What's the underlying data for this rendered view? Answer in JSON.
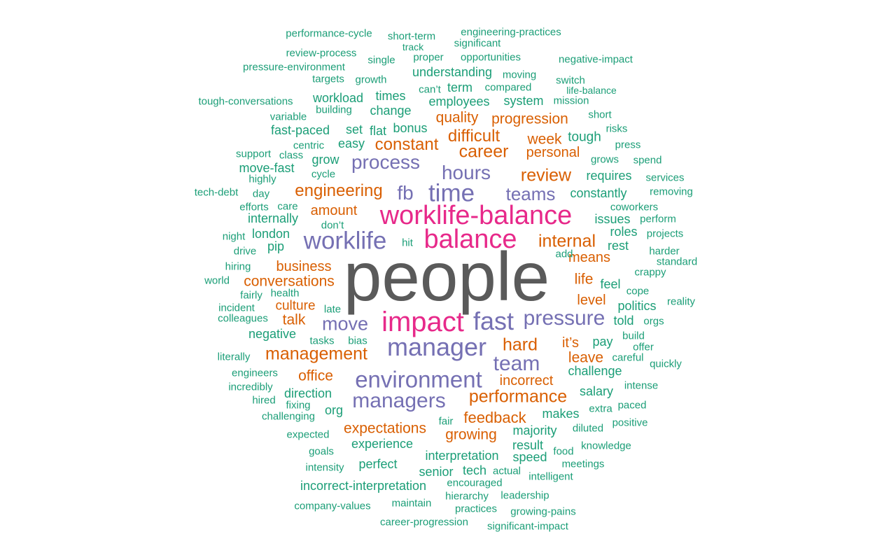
{
  "colors": {
    "darkgray": "#5a5a5a",
    "magenta": "#e7298a",
    "purple": "#7570b3",
    "orange": "#d95f02",
    "teal": "#1b9e77"
  },
  "words": [
    {
      "text": "people",
      "color": "darkgray"
    },
    {
      "text": "impact",
      "color": "magenta"
    },
    {
      "text": "balance",
      "color": "magenta"
    },
    {
      "text": "worklife-balance",
      "color": "magenta"
    },
    {
      "text": "manager",
      "color": "purple"
    },
    {
      "text": "fast",
      "color": "purple"
    },
    {
      "text": "environment",
      "color": "purple"
    },
    {
      "text": "worklife",
      "color": "purple"
    },
    {
      "text": "time",
      "color": "purple"
    },
    {
      "text": "pressure",
      "color": "purple"
    },
    {
      "text": "managers",
      "color": "purple"
    },
    {
      "text": "team",
      "color": "purple"
    },
    {
      "text": "move",
      "color": "purple"
    },
    {
      "text": "hours",
      "color": "purple"
    },
    {
      "text": "fb",
      "color": "purple"
    },
    {
      "text": "process",
      "color": "purple"
    },
    {
      "text": "teams",
      "color": "purple"
    },
    {
      "text": "management",
      "color": "orange"
    },
    {
      "text": "performance",
      "color": "orange"
    },
    {
      "text": "engineering",
      "color": "orange"
    },
    {
      "text": "internal",
      "color": "orange"
    },
    {
      "text": "career",
      "color": "orange"
    },
    {
      "text": "constant",
      "color": "orange"
    },
    {
      "text": "review",
      "color": "orange"
    },
    {
      "text": "hard",
      "color": "orange"
    },
    {
      "text": "difficult",
      "color": "orange"
    },
    {
      "text": "expectations",
      "color": "orange"
    },
    {
      "text": "feedback",
      "color": "orange"
    },
    {
      "text": "conversations",
      "color": "orange"
    },
    {
      "text": "progression",
      "color": "orange"
    },
    {
      "text": "business",
      "color": "orange"
    },
    {
      "text": "means",
      "color": "orange"
    },
    {
      "text": "growing",
      "color": "orange"
    },
    {
      "text": "incorrect",
      "color": "orange"
    },
    {
      "text": "personal",
      "color": "orange"
    },
    {
      "text": "office",
      "color": "orange"
    },
    {
      "text": "amount",
      "color": "orange"
    },
    {
      "text": "leave",
      "color": "orange"
    },
    {
      "text": "week",
      "color": "orange"
    },
    {
      "text": "quality",
      "color": "orange"
    },
    {
      "text": "culture",
      "color": "orange"
    },
    {
      "text": "talk",
      "color": "orange"
    },
    {
      "text": "life",
      "color": "orange"
    },
    {
      "text": "level",
      "color": "orange"
    },
    {
      "text": "it’s",
      "color": "orange"
    },
    {
      "text": "performance-cycle",
      "color": "teal"
    },
    {
      "text": "short-term",
      "color": "teal"
    },
    {
      "text": "engineering-practices",
      "color": "teal"
    },
    {
      "text": "significant",
      "color": "teal"
    },
    {
      "text": "track",
      "color": "teal"
    },
    {
      "text": "review-process",
      "color": "teal"
    },
    {
      "text": "single",
      "color": "teal"
    },
    {
      "text": "proper",
      "color": "teal"
    },
    {
      "text": "opportunities",
      "color": "teal"
    },
    {
      "text": "negative-impact",
      "color": "teal"
    },
    {
      "text": "pressure-environment",
      "color": "teal"
    },
    {
      "text": "understanding",
      "color": "teal"
    },
    {
      "text": "moving",
      "color": "teal"
    },
    {
      "text": "targets",
      "color": "teal"
    },
    {
      "text": "growth",
      "color": "teal"
    },
    {
      "text": "switch",
      "color": "teal"
    },
    {
      "text": "term",
      "color": "teal"
    },
    {
      "text": "compared",
      "color": "teal"
    },
    {
      "text": "can’t",
      "color": "teal"
    },
    {
      "text": "life-balance",
      "color": "teal"
    },
    {
      "text": "tough-conversations",
      "color": "teal"
    },
    {
      "text": "workload",
      "color": "teal"
    },
    {
      "text": "times",
      "color": "teal"
    },
    {
      "text": "employees",
      "color": "teal"
    },
    {
      "text": "system",
      "color": "teal"
    },
    {
      "text": "mission",
      "color": "teal"
    },
    {
      "text": "building",
      "color": "teal"
    },
    {
      "text": "change",
      "color": "teal"
    },
    {
      "text": "variable",
      "color": "teal"
    },
    {
      "text": "short",
      "color": "teal"
    },
    {
      "text": "fast-paced",
      "color": "teal"
    },
    {
      "text": "set",
      "color": "teal"
    },
    {
      "text": "flat",
      "color": "teal"
    },
    {
      "text": "bonus",
      "color": "teal"
    },
    {
      "text": "risks",
      "color": "teal"
    },
    {
      "text": "tough",
      "color": "teal"
    },
    {
      "text": "centric",
      "color": "teal"
    },
    {
      "text": "easy",
      "color": "teal"
    },
    {
      "text": "press",
      "color": "teal"
    },
    {
      "text": "support",
      "color": "teal"
    },
    {
      "text": "class",
      "color": "teal"
    },
    {
      "text": "grow",
      "color": "teal"
    },
    {
      "text": "grows",
      "color": "teal"
    },
    {
      "text": "spend",
      "color": "teal"
    },
    {
      "text": "move-fast",
      "color": "teal"
    },
    {
      "text": "cycle",
      "color": "teal"
    },
    {
      "text": "requires",
      "color": "teal"
    },
    {
      "text": "services",
      "color": "teal"
    },
    {
      "text": "highly",
      "color": "teal"
    },
    {
      "text": "tech-debt",
      "color": "teal"
    },
    {
      "text": "day",
      "color": "teal"
    },
    {
      "text": "constantly",
      "color": "teal"
    },
    {
      "text": "removing",
      "color": "teal"
    },
    {
      "text": "efforts",
      "color": "teal"
    },
    {
      "text": "care",
      "color": "teal"
    },
    {
      "text": "coworkers",
      "color": "teal"
    },
    {
      "text": "internally",
      "color": "teal"
    },
    {
      "text": "issues",
      "color": "teal"
    },
    {
      "text": "perform",
      "color": "teal"
    },
    {
      "text": "don’t",
      "color": "teal"
    },
    {
      "text": "roles",
      "color": "teal"
    },
    {
      "text": "projects",
      "color": "teal"
    },
    {
      "text": "night",
      "color": "teal"
    },
    {
      "text": "london",
      "color": "teal"
    },
    {
      "text": "rest",
      "color": "teal"
    },
    {
      "text": "hit",
      "color": "teal"
    },
    {
      "text": "pip",
      "color": "teal"
    },
    {
      "text": "drive",
      "color": "teal"
    },
    {
      "text": "add",
      "color": "teal"
    },
    {
      "text": "harder",
      "color": "teal"
    },
    {
      "text": "standard",
      "color": "teal"
    },
    {
      "text": "hiring",
      "color": "teal"
    },
    {
      "text": "crappy",
      "color": "teal"
    },
    {
      "text": "world",
      "color": "teal"
    },
    {
      "text": "feel",
      "color": "teal"
    },
    {
      "text": "cope",
      "color": "teal"
    },
    {
      "text": "fairly",
      "color": "teal"
    },
    {
      "text": "health",
      "color": "teal"
    },
    {
      "text": "reality",
      "color": "teal"
    },
    {
      "text": "incident",
      "color": "teal"
    },
    {
      "text": "late",
      "color": "teal"
    },
    {
      "text": "politics",
      "color": "teal"
    },
    {
      "text": "colleagues",
      "color": "teal"
    },
    {
      "text": "told",
      "color": "teal"
    },
    {
      "text": "orgs",
      "color": "teal"
    },
    {
      "text": "negative",
      "color": "teal"
    },
    {
      "text": "build",
      "color": "teal"
    },
    {
      "text": "tasks",
      "color": "teal"
    },
    {
      "text": "bias",
      "color": "teal"
    },
    {
      "text": "pay",
      "color": "teal"
    },
    {
      "text": "offer",
      "color": "teal"
    },
    {
      "text": "literally",
      "color": "teal"
    },
    {
      "text": "careful",
      "color": "teal"
    },
    {
      "text": "quickly",
      "color": "teal"
    },
    {
      "text": "engineers",
      "color": "teal"
    },
    {
      "text": "challenge",
      "color": "teal"
    },
    {
      "text": "incredibly",
      "color": "teal"
    },
    {
      "text": "intense",
      "color": "teal"
    },
    {
      "text": "direction",
      "color": "teal"
    },
    {
      "text": "salary",
      "color": "teal"
    },
    {
      "text": "hired",
      "color": "teal"
    },
    {
      "text": "fixing",
      "color": "teal"
    },
    {
      "text": "org",
      "color": "teal"
    },
    {
      "text": "extra",
      "color": "teal"
    },
    {
      "text": "paced",
      "color": "teal"
    },
    {
      "text": "challenging",
      "color": "teal"
    },
    {
      "text": "makes",
      "color": "teal"
    },
    {
      "text": "fair",
      "color": "teal"
    },
    {
      "text": "positive",
      "color": "teal"
    },
    {
      "text": "expected",
      "color": "teal"
    },
    {
      "text": "majority",
      "color": "teal"
    },
    {
      "text": "diluted",
      "color": "teal"
    },
    {
      "text": "experience",
      "color": "teal"
    },
    {
      "text": "result",
      "color": "teal"
    },
    {
      "text": "knowledge",
      "color": "teal"
    },
    {
      "text": "goals",
      "color": "teal"
    },
    {
      "text": "interpretation",
      "color": "teal"
    },
    {
      "text": "speed",
      "color": "teal"
    },
    {
      "text": "food",
      "color": "teal"
    },
    {
      "text": "perfect",
      "color": "teal"
    },
    {
      "text": "meetings",
      "color": "teal"
    },
    {
      "text": "intensity",
      "color": "teal"
    },
    {
      "text": "senior",
      "color": "teal"
    },
    {
      "text": "tech",
      "color": "teal"
    },
    {
      "text": "actual",
      "color": "teal"
    },
    {
      "text": "intelligent",
      "color": "teal"
    },
    {
      "text": "encouraged",
      "color": "teal"
    },
    {
      "text": "incorrect-interpretation",
      "color": "teal"
    },
    {
      "text": "hierarchy",
      "color": "teal"
    },
    {
      "text": "leadership",
      "color": "teal"
    },
    {
      "text": "maintain",
      "color": "teal"
    },
    {
      "text": "company-values",
      "color": "teal"
    },
    {
      "text": "practices",
      "color": "teal"
    },
    {
      "text": "growing-pains",
      "color": "teal"
    },
    {
      "text": "career-progression",
      "color": "teal"
    },
    {
      "text": "significant-impact",
      "color": "teal"
    }
  ]
}
